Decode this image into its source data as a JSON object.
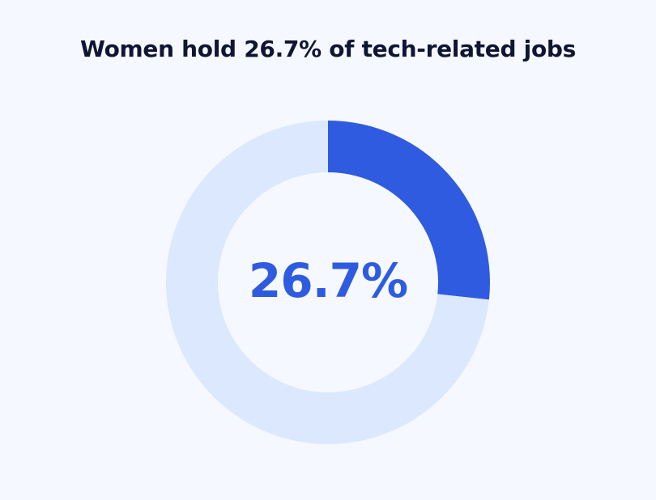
{
  "chart_data": {
    "type": "pie",
    "title": "Women hold 26.7% of tech-related jobs",
    "center_label": "26.7%",
    "slices": [
      {
        "value": 26.7,
        "color": "#2F5BE0"
      },
      {
        "value": 73.3,
        "color": "#DCE8FD"
      }
    ]
  },
  "colors": {
    "background": "#F5F9FF",
    "title": "#0F1533",
    "accent": "#2F5BE0"
  }
}
